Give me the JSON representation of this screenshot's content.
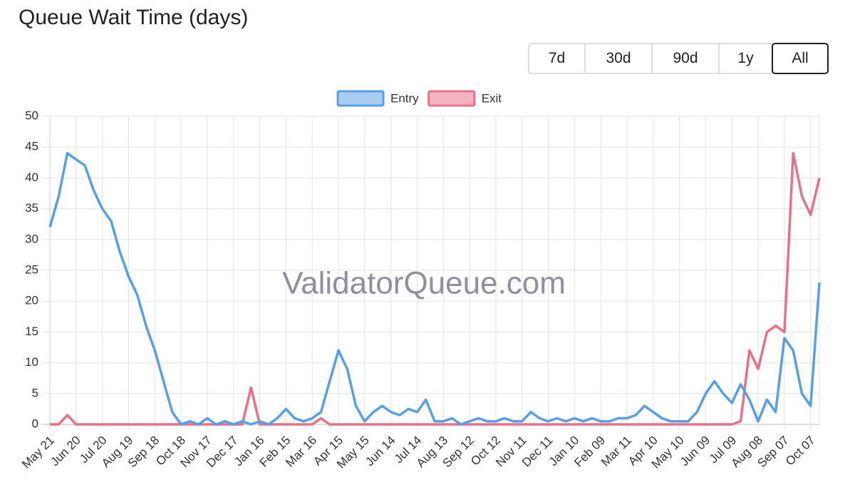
{
  "page": {
    "title": "Queue Wait Time (days)",
    "buttons": [
      "7d",
      "30d",
      "90d",
      "1y",
      "All"
    ]
  },
  "chart_data": {
    "type": "line",
    "watermark": "ValidatorQueue.com",
    "categories": [
      "May 21",
      null,
      null,
      "Jun 20",
      null,
      null,
      "Jul 20",
      null,
      null,
      "Aug 19",
      null,
      null,
      "Sep 18",
      null,
      null,
      "Oct 18",
      null,
      null,
      "Nov 17",
      null,
      null,
      "Dec 17",
      null,
      null,
      "Jan 16",
      null,
      null,
      "Feb 15",
      null,
      null,
      "Mar 16",
      null,
      null,
      "Apr 15",
      null,
      null,
      "May 15",
      null,
      null,
      "Jun 14",
      null,
      null,
      "Jul 14",
      null,
      null,
      "Aug 13",
      null,
      null,
      "Sep 12",
      null,
      null,
      "Oct 12",
      null,
      null,
      "Nov 11",
      null,
      null,
      "Dec 11",
      null,
      null,
      "Jan 10",
      null,
      null,
      "Feb 09",
      null,
      null,
      "Mar 11",
      null,
      null,
      "Apr 10",
      null,
      null,
      "May 10",
      null,
      null,
      "Jun 09",
      null,
      null,
      "Jul 09",
      null,
      null,
      "Aug 08",
      null,
      null,
      "Sep 07",
      null,
      null,
      "Oct 07",
      null
    ],
    "series": [
      {
        "name": "Entry",
        "color": "#57a0e5",
        "fill": "#a9cdf2",
        "values": [
          32,
          37,
          44,
          43,
          42,
          38,
          35,
          33,
          28,
          24,
          21,
          16,
          12,
          7,
          2,
          0,
          0.5,
          0,
          1,
          0,
          0.5,
          0,
          0.5,
          0,
          0.5,
          0,
          1,
          2.5,
          1,
          0.5,
          1,
          2,
          7,
          12,
          9,
          3,
          0.5,
          2,
          3,
          2,
          1.5,
          2.5,
          2,
          4,
          0.5,
          0.5,
          1,
          0,
          0.5,
          1,
          0.5,
          0.5,
          1,
          0.5,
          0.5,
          2,
          1,
          0.5,
          1,
          0.5,
          1,
          0.5,
          1,
          0.5,
          0.5,
          1,
          1,
          1.5,
          3,
          2,
          1,
          0.5,
          0.5,
          0.5,
          2,
          5,
          7,
          5,
          3.5,
          6.5,
          4,
          0.5,
          4,
          2,
          14,
          12,
          5,
          3,
          23
        ]
      },
      {
        "name": "Exit",
        "color": "#e8718a",
        "fill": "#f4b3c1",
        "values": [
          0,
          0,
          1.5,
          0,
          0,
          0,
          0,
          0,
          0,
          0,
          0,
          0,
          0,
          0,
          0,
          0,
          0,
          0,
          0,
          0,
          0,
          0,
          0,
          6,
          0,
          0,
          0,
          0,
          0,
          0,
          0,
          1,
          0,
          0,
          0,
          0,
          0,
          0,
          0,
          0,
          0,
          0,
          0,
          0,
          0,
          0,
          0,
          0,
          0,
          0,
          0,
          0,
          0,
          0,
          0,
          0,
          0,
          0,
          0,
          0,
          0,
          0,
          0,
          0,
          0,
          0,
          0,
          0,
          0,
          0,
          0,
          0,
          0,
          0,
          0,
          0,
          0,
          0,
          0,
          0.5,
          12,
          9,
          15,
          16,
          15,
          44,
          37,
          34,
          40
        ]
      }
    ],
    "ylim": [
      0,
      50
    ],
    "yticks": [
      0,
      5,
      10,
      15,
      20,
      25,
      30,
      35,
      40,
      45,
      50
    ],
    "grid": true,
    "legend": "top"
  }
}
